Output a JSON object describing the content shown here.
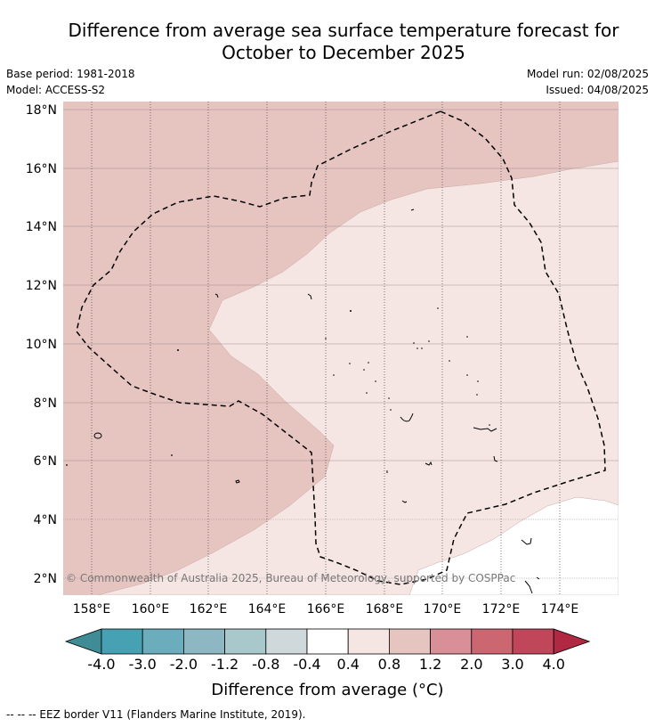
{
  "title_line1": "Difference from average sea surface temperature forecast for",
  "title_line2": "October to December 2025",
  "base_period": "Base period: 1981-2018",
  "model": "Model: ACCESS-S2",
  "model_run": "Model run: 02/08/2025",
  "issued": "Issued: 04/08/2025",
  "copyright": "© Commonwealth of Australia 2025, Bureau of Meteorology, supported by COSPPac",
  "footnote": "--  --  -- EEZ border V11 (Flanders Marine Institute, 2019).",
  "map": {
    "lat_labels": [
      "18°N",
      "16°N",
      "14°N",
      "12°N",
      "10°N",
      "8°N",
      "6°N",
      "4°N",
      "2°N"
    ],
    "lon_labels": [
      "158°E",
      "160°E",
      "162°E",
      "164°E",
      "166°E",
      "168°E",
      "170°E",
      "172°E",
      "174°E"
    ],
    "zones": [
      {
        "name": "0.8 to 1.2",
        "color": "#e6c5c1"
      },
      {
        "name": "0.4 to 0.8",
        "color": "#f5e6e4"
      },
      {
        "name": "-0.4 to 0.4",
        "color": "#ffffff"
      }
    ]
  },
  "legend": {
    "title": "Difference from average (°C)",
    "ticks": [
      "-4.0",
      "-3.0",
      "-2.0",
      "-1.2",
      "-0.8",
      "-0.4",
      "0.4",
      "0.8",
      "1.2",
      "2.0",
      "3.0",
      "4.0"
    ],
    "colors": [
      "#3f8c96",
      "#46a2b3",
      "#6cadbd",
      "#8db7c2",
      "#a9c8cc",
      "#cfd9db",
      "#ffffff",
      "#f5e6e4",
      "#e6c5c1",
      "#d98f97",
      "#cc6670",
      "#c0465a",
      "#b12843"
    ]
  }
}
